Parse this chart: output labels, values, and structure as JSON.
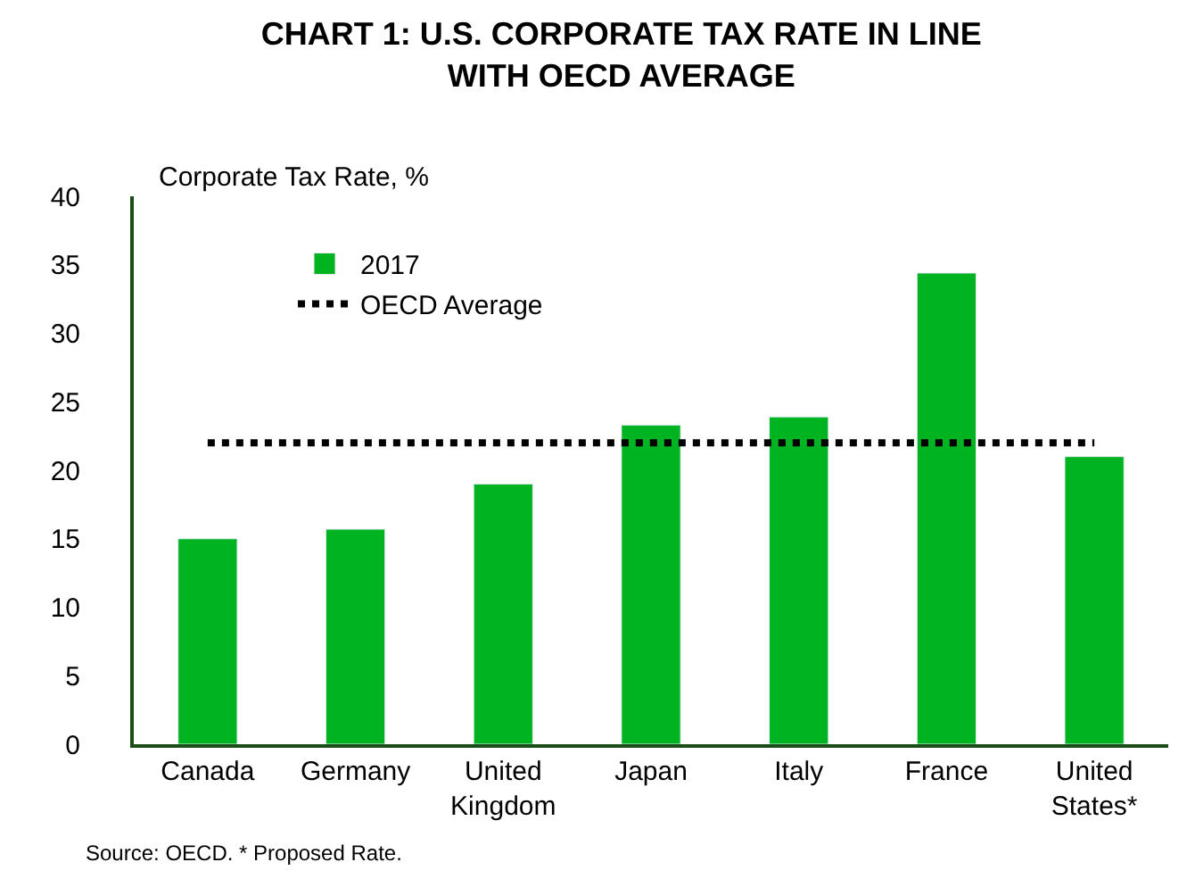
{
  "chart_data": {
    "type": "bar",
    "title": "CHART 1: U.S. CORPORATE TAX RATE IN LINE\nWITH OECD AVERAGE",
    "ylabel": "Corporate Tax Rate, %",
    "categories": [
      "Canada",
      "Germany",
      "United\nKingdom",
      "Japan",
      "Italy",
      "France",
      "United\nStates*"
    ],
    "series": [
      {
        "name": "2017",
        "color": "#00b321",
        "values": [
          15.0,
          15.7,
          19.0,
          23.3,
          23.9,
          34.4,
          21.0
        ]
      },
      {
        "name": "OECD Average",
        "type": "line",
        "color": "#000000",
        "line_style": "dotted",
        "marker": "none",
        "values": [
          22,
          22,
          22,
          22,
          22,
          22,
          22
        ]
      }
    ],
    "ylim": [
      0,
      40
    ],
    "yticks": [
      0,
      5,
      10,
      15,
      20,
      25,
      30,
      35,
      40
    ],
    "grid": false,
    "legend": "top left",
    "annotations": [
      "Source: OECD. * Proposed Rate."
    ]
  }
}
